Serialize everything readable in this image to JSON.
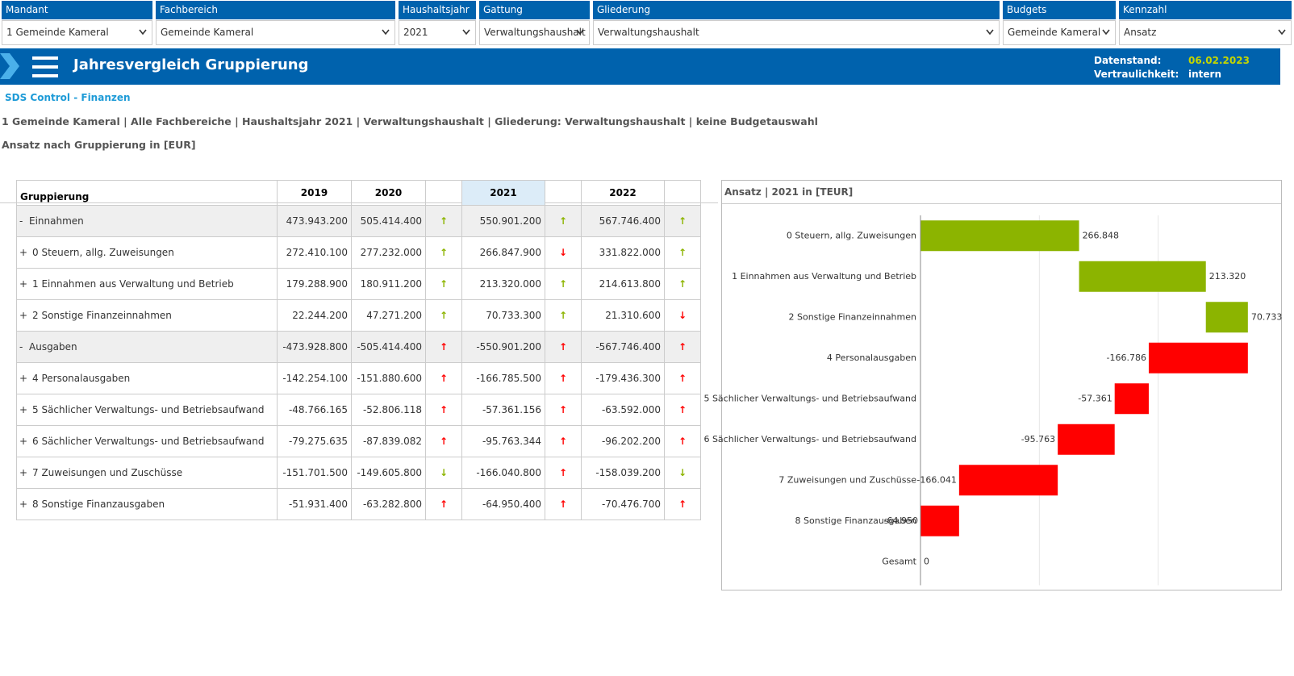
{
  "filters": [
    {
      "label": "Mandant",
      "value": "1 Gemeinde Kameral"
    },
    {
      "label": "Fachbereich",
      "value": "Gemeinde Kameral"
    },
    {
      "label": "Haushaltsjahr",
      "value": "2021"
    },
    {
      "label": "Gattung",
      "value": "Verwaltungshaushalt"
    },
    {
      "label": "Gliederung",
      "value": "Verwaltungshaushalt"
    },
    {
      "label": "Budgets",
      "value": "Gemeinde Kameral"
    },
    {
      "label": "Kennzahl",
      "value": "Ansatz"
    }
  ],
  "header": {
    "title": "Jahresvergleich Gruppierung",
    "datenstand_label": "Datenstand:",
    "datenstand": "06.02.2023",
    "vertraulichkeit_label": "Vertraulichkeit:",
    "vertraulichkeit": "intern"
  },
  "app_name": "SDS Control - Finanzen",
  "context": "1 Gemeinde Kameral | Alle Fachbereiche | Haushaltsjahr 2021 | Verwaltungshaushalt | Gliederung: Verwaltungshaushalt | keine Budgetauswahl",
  "subtitle": "Ansatz nach Gruppierung in [EUR]",
  "table": {
    "columns": [
      "Gruppierung",
      "2019",
      "2020",
      "2021",
      "2022"
    ],
    "highlight_column": 3,
    "arrow_colors": {
      "good": "#8cb400",
      "bad": "#ff0000"
    },
    "rows": [
      {
        "toggle": "-",
        "label": "Einnahmen",
        "group": true,
        "values": [
          "473.943.200",
          "505.414.400",
          "550.901.200",
          "567.746.400"
        ],
        "arrows": [
          "↑",
          "↑",
          "↑"
        ],
        "arrow_ratings": [
          "good",
          "good",
          "good"
        ]
      },
      {
        "toggle": "+",
        "label": "0 Steuern, allg. Zuweisungen",
        "group": false,
        "values": [
          "272.410.100",
          "277.232.000",
          "266.847.900",
          "331.822.000"
        ],
        "arrows": [
          "↑",
          "↓",
          "↑"
        ],
        "arrow_ratings": [
          "good",
          "bad",
          "good"
        ]
      },
      {
        "toggle": "+",
        "label": "1 Einnahmen aus Verwaltung und Betrieb",
        "group": false,
        "values": [
          "179.288.900",
          "180.911.200",
          "213.320.000",
          "214.613.800"
        ],
        "arrows": [
          "↑",
          "↑",
          "↑"
        ],
        "arrow_ratings": [
          "good",
          "good",
          "good"
        ]
      },
      {
        "toggle": "+",
        "label": "2 Sonstige Finanzeinnahmen",
        "group": false,
        "values": [
          "22.244.200",
          "47.271.200",
          "70.733.300",
          "21.310.600"
        ],
        "arrows": [
          "↑",
          "↑",
          "↓"
        ],
        "arrow_ratings": [
          "good",
          "good",
          "bad"
        ]
      },
      {
        "toggle": "-",
        "label": "Ausgaben",
        "group": true,
        "values": [
          "-473.928.800",
          "-505.414.400",
          "-550.901.200",
          "-567.746.400"
        ],
        "arrows": [
          "↑",
          "↑",
          "↑"
        ],
        "arrow_ratings": [
          "bad",
          "bad",
          "bad"
        ]
      },
      {
        "toggle": "+",
        "label": "4 Personalausgaben",
        "group": false,
        "values": [
          "-142.254.100",
          "-151.880.600",
          "-166.785.500",
          "-179.436.300"
        ],
        "arrows": [
          "↑",
          "↑",
          "↑"
        ],
        "arrow_ratings": [
          "bad",
          "bad",
          "bad"
        ]
      },
      {
        "toggle": "+",
        "label": "5 Sächlicher Verwaltungs- und Betriebsaufwand",
        "group": false,
        "values": [
          "-48.766.165",
          "-52.806.118",
          "-57.361.156",
          "-63.592.000"
        ],
        "arrows": [
          "↑",
          "↑",
          "↑"
        ],
        "arrow_ratings": [
          "bad",
          "bad",
          "bad"
        ]
      },
      {
        "toggle": "+",
        "label": "6 Sächlicher Verwaltungs- und Betriebsaufwand",
        "group": false,
        "values": [
          "-79.275.635",
          "-87.839.082",
          "-95.763.344",
          "-96.202.200"
        ],
        "arrows": [
          "↑",
          "↑",
          "↑"
        ],
        "arrow_ratings": [
          "bad",
          "bad",
          "bad"
        ]
      },
      {
        "toggle": "+",
        "label": "7 Zuweisungen und Zuschüsse",
        "group": false,
        "values": [
          "-151.701.500",
          "-149.605.800",
          "-166.040.800",
          "-158.039.200"
        ],
        "arrows": [
          "↓",
          "↑",
          "↓"
        ],
        "arrow_ratings": [
          "good",
          "bad",
          "good"
        ]
      },
      {
        "toggle": "+",
        "label": "8 Sonstige Finanzausgaben",
        "group": false,
        "values": [
          "-51.931.400",
          "-63.282.800",
          "-64.950.400",
          "-70.476.700"
        ],
        "arrows": [
          "↑",
          "↑",
          "↑"
        ],
        "arrow_ratings": [
          "bad",
          "bad",
          "bad"
        ]
      }
    ]
  },
  "chart_data": {
    "type": "waterfall",
    "title": "Ansatz | 2021 in [TEUR]",
    "categories": [
      "0 Steuern, allg. Zuweisungen",
      "1 Einnahmen aus Verwaltung und Betrieb",
      "2 Sonstige Finanzeinnahmen",
      "4 Personalausgaben",
      "5 Sächlicher Verwaltungs- und Betriebsaufwand",
      "6 Sächlicher Verwaltungs- und Betriebsaufwand",
      "7 Zuweisungen und Zuschüsse",
      "8 Sonstige Finanzausgaben",
      "Gesamt"
    ],
    "values": [
      266848,
      213320,
      70733,
      -166786,
      -57361,
      -95763,
      -166041,
      -64950,
      0
    ],
    "value_labels": [
      "266.848",
      "213.320",
      "70.733",
      "-166.786",
      "-57.361",
      "-95.763",
      "-166.041",
      "-64.950",
      "0"
    ],
    "colors": {
      "increase": "#8cb400",
      "decrease": "#ff0000"
    },
    "xlim": [
      0,
      600000
    ],
    "xticks": [
      200000,
      400000
    ],
    "tick_labels": false,
    "grid": true
  }
}
